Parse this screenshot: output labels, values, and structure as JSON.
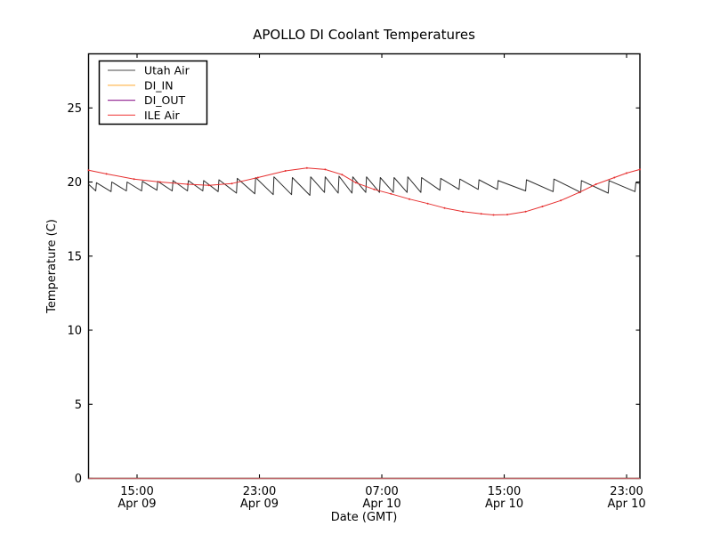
{
  "figure": {
    "background": "#ffffff"
  },
  "chart_data": {
    "type": "line",
    "title": "APOLLO DI Coolant Temperatures",
    "xlabel": "Date (GMT)",
    "ylabel": "Temperature (C)",
    "x_units": "hours since Apr 09 00:00 GMT",
    "xlim": [
      11.83,
      47.87
    ],
    "ylim": [
      0,
      28.65
    ],
    "yticks": [
      0,
      5,
      10,
      15,
      20,
      25
    ],
    "xticks": [
      {
        "t": 15,
        "time": "15:00",
        "date": "Apr 09"
      },
      {
        "t": 23,
        "time": "23:00",
        "date": "Apr 09"
      },
      {
        "t": 31,
        "time": "07:00",
        "date": "Apr 10"
      },
      {
        "t": 39,
        "time": "15:00",
        "date": "Apr 10"
      },
      {
        "t": 47,
        "time": "23:00",
        "date": "Apr 10"
      }
    ],
    "legend_position": "upper left",
    "series": [
      {
        "name": "Utah Air",
        "color": "#2b2b2b",
        "legend_color": "#6e6e6e",
        "width": 1.0,
        "opacity": 1,
        "markers": false,
        "points": [
          [
            11.83,
            19.85
          ],
          [
            12.3,
            19.4
          ],
          [
            12.35,
            19.95
          ],
          [
            13.3,
            19.35
          ],
          [
            13.35,
            20.0
          ],
          [
            14.3,
            19.4
          ],
          [
            14.35,
            20.0
          ],
          [
            15.3,
            19.4
          ],
          [
            15.35,
            20.05
          ],
          [
            16.3,
            19.45
          ],
          [
            16.35,
            20.05
          ],
          [
            17.3,
            19.4
          ],
          [
            17.35,
            20.1
          ],
          [
            18.3,
            19.4
          ],
          [
            18.35,
            20.1
          ],
          [
            19.3,
            19.4
          ],
          [
            19.35,
            20.1
          ],
          [
            20.3,
            19.35
          ],
          [
            20.35,
            20.15
          ],
          [
            21.5,
            19.25
          ],
          [
            21.55,
            20.25
          ],
          [
            22.7,
            19.2
          ],
          [
            22.75,
            20.3
          ],
          [
            23.9,
            19.15
          ],
          [
            23.95,
            20.35
          ],
          [
            25.1,
            19.15
          ],
          [
            25.15,
            20.3
          ],
          [
            26.3,
            19.1
          ],
          [
            26.35,
            20.35
          ],
          [
            27.25,
            19.3
          ],
          [
            27.3,
            20.35
          ],
          [
            28.15,
            19.25
          ],
          [
            28.2,
            20.4
          ],
          [
            29.05,
            19.25
          ],
          [
            29.1,
            20.35
          ],
          [
            29.95,
            19.3
          ],
          [
            30.0,
            20.35
          ],
          [
            30.85,
            19.3
          ],
          [
            30.9,
            20.3
          ],
          [
            31.75,
            19.3
          ],
          [
            31.8,
            20.3
          ],
          [
            32.65,
            19.3
          ],
          [
            32.7,
            20.35
          ],
          [
            33.55,
            19.3
          ],
          [
            33.6,
            20.3
          ],
          [
            34.8,
            19.45
          ],
          [
            34.85,
            20.25
          ],
          [
            36.05,
            19.5
          ],
          [
            36.1,
            20.2
          ],
          [
            37.3,
            19.5
          ],
          [
            37.35,
            20.15
          ],
          [
            38.55,
            19.5
          ],
          [
            38.6,
            20.1
          ],
          [
            40.4,
            19.4
          ],
          [
            40.45,
            20.15
          ],
          [
            42.2,
            19.35
          ],
          [
            42.25,
            20.2
          ],
          [
            44.0,
            19.3
          ],
          [
            44.05,
            20.1
          ],
          [
            45.8,
            19.25
          ],
          [
            45.85,
            20.1
          ],
          [
            47.55,
            19.35
          ],
          [
            47.6,
            19.95
          ],
          [
            47.87,
            19.9
          ]
        ]
      },
      {
        "name": "DI_IN",
        "color": "#ffa62b",
        "legend_color": "#ffb347",
        "width": 1.2,
        "opacity": 0.9,
        "markers": false,
        "points": [
          [
            11.83,
            0
          ],
          [
            47.87,
            0
          ]
        ]
      },
      {
        "name": "DI_OUT",
        "color": "#993399",
        "legend_color": "#993399",
        "width": 1.2,
        "opacity": 0.55,
        "markers": false,
        "points": [
          [
            11.83,
            0
          ],
          [
            47.87,
            0
          ]
        ]
      },
      {
        "name": "ILE Air",
        "color": "#e62e2e",
        "legend_color": "#f25c5c",
        "width": 1.0,
        "opacity": 1,
        "markers": true,
        "points": [
          [
            11.83,
            20.8
          ],
          [
            13.0,
            20.55
          ],
          [
            14.8,
            20.2
          ],
          [
            16.5,
            20.0
          ],
          [
            18.3,
            19.85
          ],
          [
            19.7,
            19.78
          ],
          [
            21.2,
            19.9
          ],
          [
            22.9,
            20.3
          ],
          [
            24.7,
            20.75
          ],
          [
            26.1,
            20.95
          ],
          [
            27.3,
            20.85
          ],
          [
            28.4,
            20.5
          ],
          [
            29.3,
            19.95
          ],
          [
            30.5,
            19.5
          ],
          [
            31.6,
            19.2
          ],
          [
            32.8,
            18.85
          ],
          [
            34.0,
            18.55
          ],
          [
            35.1,
            18.25
          ],
          [
            36.3,
            18.0
          ],
          [
            37.5,
            17.85
          ],
          [
            38.3,
            17.78
          ],
          [
            39.2,
            17.8
          ],
          [
            40.4,
            18.0
          ],
          [
            41.5,
            18.35
          ],
          [
            42.7,
            18.75
          ],
          [
            43.9,
            19.3
          ],
          [
            45.0,
            19.85
          ],
          [
            46.2,
            20.3
          ],
          [
            47.0,
            20.6
          ],
          [
            47.87,
            20.85
          ]
        ]
      }
    ]
  }
}
